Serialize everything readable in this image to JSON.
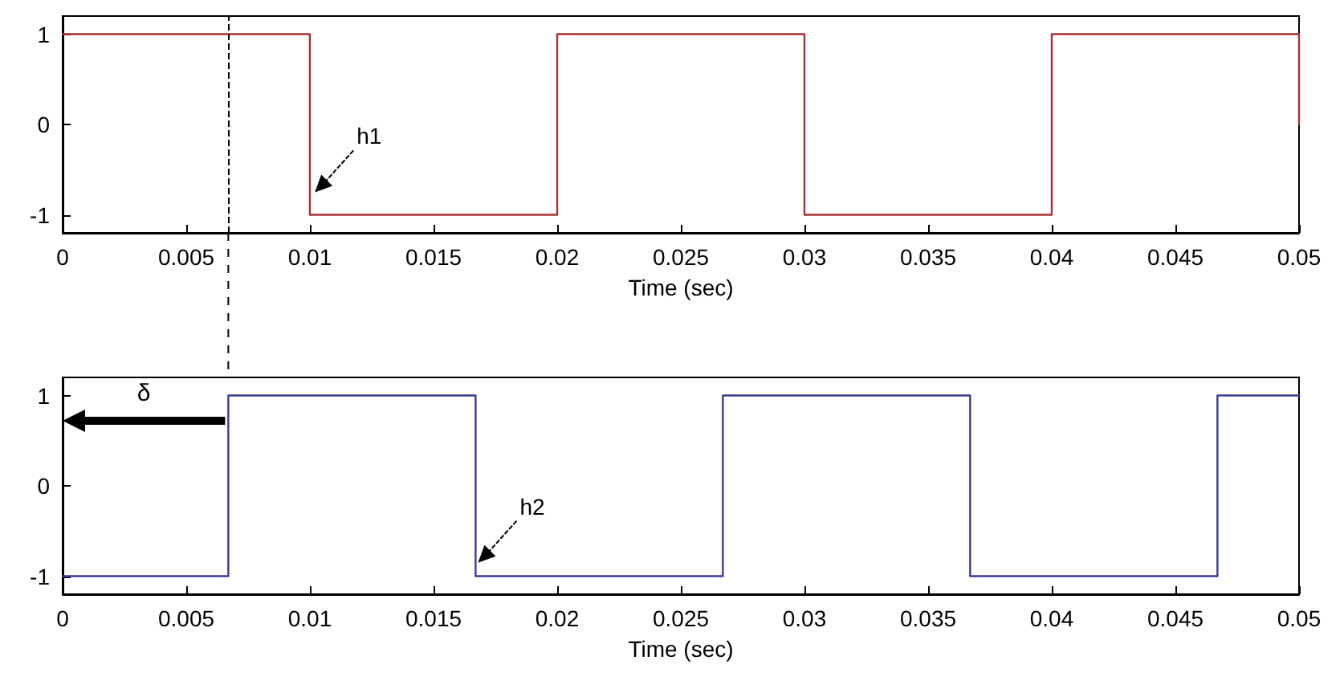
{
  "chart_data": [
    {
      "type": "line",
      "xlabel": "Time (sec)",
      "xlim": [
        0,
        0.05
      ],
      "xticks": [
        0,
        0.005,
        0.01,
        0.015,
        0.02,
        0.025,
        0.03,
        0.035,
        0.04,
        0.045,
        0.05
      ],
      "ylim": [
        -1.2,
        1.2
      ],
      "yticks": [
        -1,
        0,
        1
      ],
      "marker": "none",
      "line_style": "solid",
      "series": [
        {
          "color": "#a83232",
          "x": [
            0,
            0.01,
            0.01,
            0.02,
            0.02,
            0.03,
            0.03,
            0.04,
            0.04,
            0.05,
            0.05
          ],
          "values": [
            1,
            1,
            -1,
            -1,
            1,
            1,
            -1,
            -1,
            1,
            1,
            0
          ]
        }
      ],
      "ref_lines": [
        {
          "axis": "x",
          "value": 0.0067,
          "label": null,
          "color": "#000000",
          "line_style": "dashed"
        }
      ],
      "annotations": [
        {
          "text": "h1",
          "x": 0.0102,
          "y": -0.75
        }
      ]
    },
    {
      "type": "line",
      "xlabel": "Time (sec)",
      "xlim": [
        0,
        0.05
      ],
      "xticks": [
        0,
        0.005,
        0.01,
        0.015,
        0.02,
        0.025,
        0.03,
        0.035,
        0.04,
        0.045,
        0.05
      ],
      "ylim": [
        -1.2,
        1.2
      ],
      "yticks": [
        -1,
        0,
        1
      ],
      "marker": "none",
      "line_style": "solid",
      "series": [
        {
          "color": "#3a3a9a",
          "x": [
            0,
            0.0067,
            0.0067,
            0.0167,
            0.0167,
            0.0267,
            0.0267,
            0.0367,
            0.0367,
            0.0467,
            0.0467,
            0.05
          ],
          "values": [
            -1,
            -1,
            1,
            1,
            -1,
            -1,
            1,
            1,
            -1,
            -1,
            1,
            1
          ]
        }
      ],
      "annotations": [
        "δ",
        {
          "text": "h2",
          "x": 0.0168,
          "y": -0.85
        }
      ]
    }
  ]
}
